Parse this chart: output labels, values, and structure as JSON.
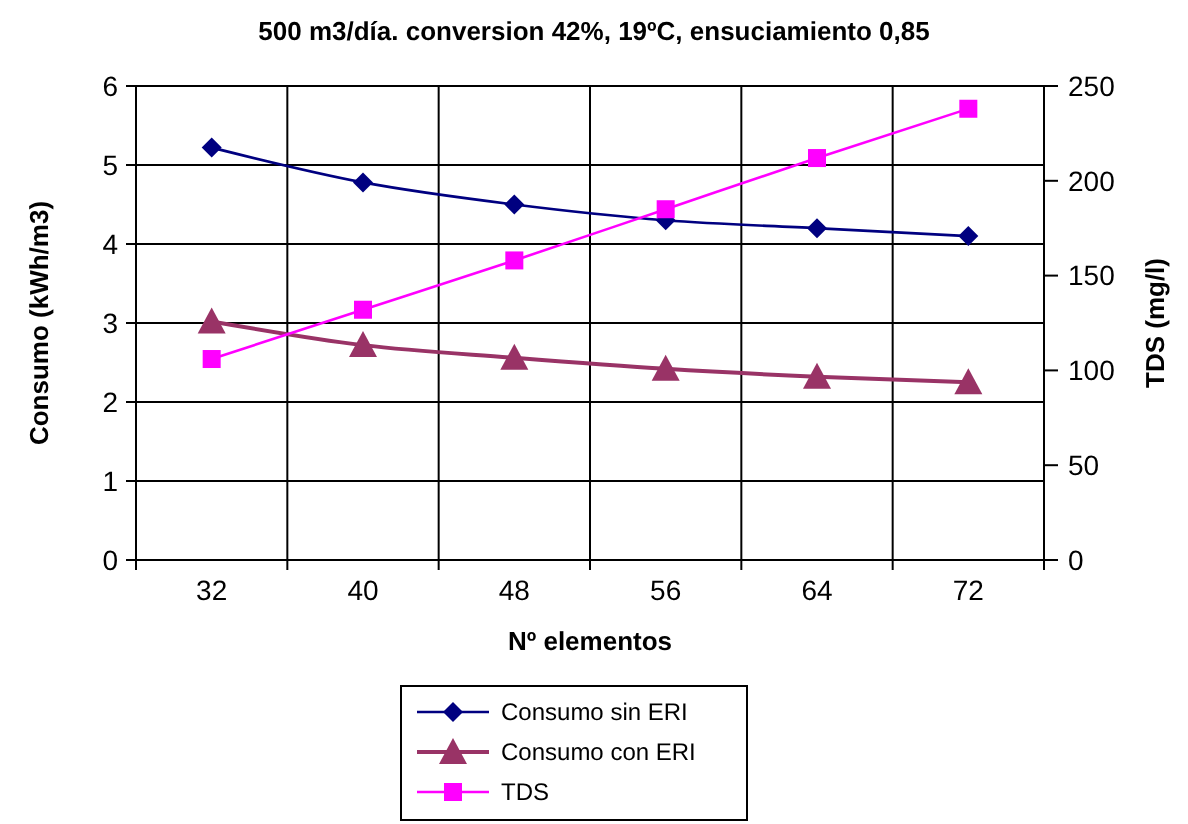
{
  "chart_data": {
    "type": "line",
    "title": "500 m3/día. conversion 42%, 19ºC, ensuciamiento 0,85",
    "xlabel": "Nº elementos",
    "ylabel": "Consumo (kWh/m3)",
    "y2label": "TDS (mg/l)",
    "categories": [
      "32",
      "40",
      "48",
      "56",
      "64",
      "72"
    ],
    "series": [
      {
        "name": "Consumo sin ERI",
        "color": "#000080",
        "marker": "diamond",
        "values": [
          5.22,
          4.78,
          4.5,
          4.3,
          4.2,
          4.1
        ]
      },
      {
        "name": "Consumo con ERI",
        "color": "#993366",
        "marker": "triangle",
        "values": [
          3.02,
          2.72,
          2.56,
          2.42,
          2.32,
          2.25
        ]
      },
      {
        "name": "TDS",
        "color": "#ff00ff",
        "marker": "square",
        "axis": "y2",
        "values": [
          106,
          132,
          158,
          185,
          212,
          238
        ]
      }
    ],
    "ylim": [
      0,
      6
    ],
    "yticks": [
      0,
      1,
      2,
      3,
      4,
      5,
      6
    ],
    "y2lim": [
      0,
      250
    ],
    "y2ticks": [
      0,
      50,
      100,
      150,
      200,
      250
    ],
    "grid": true,
    "legend": "bottom"
  }
}
